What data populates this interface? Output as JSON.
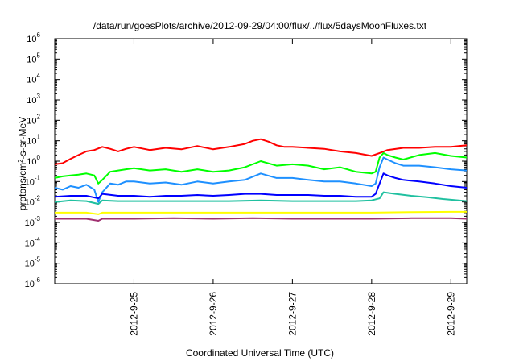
{
  "chart_data": {
    "type": "line",
    "title": "/data/run/goesPlots/archive/2012-09-29/04:00/flux/../flux/5daysMoonFluxes.txt",
    "xlabel": "Coordinated Universal Time (UTC)",
    "ylabel": {
      "prefix": "protons/cm",
      "sup": "2",
      "suffix": "-s-sr-MeV"
    },
    "yscale": "log",
    "ylim_exponents": [
      -6,
      6
    ],
    "ytick_labels": [
      {
        "base": "10",
        "exp": "6"
      },
      {
        "base": "10",
        "exp": "5"
      },
      {
        "base": "10",
        "exp": "4"
      },
      {
        "base": "10",
        "exp": "3"
      },
      {
        "base": "10",
        "exp": "2"
      },
      {
        "base": "10",
        "exp": "1"
      },
      {
        "base": "10",
        "exp": "0"
      },
      {
        "base": "10",
        "exp": "-1"
      },
      {
        "base": "10",
        "exp": "-2"
      },
      {
        "base": "10",
        "exp": "-3"
      },
      {
        "base": "10",
        "exp": "-4"
      },
      {
        "base": "10",
        "exp": "-5"
      },
      {
        "base": "10",
        "exp": "-6"
      }
    ],
    "xlim_days": [
      24.0,
      29.2
    ],
    "xticks": [
      {
        "label": "2012-9-25",
        "day": 25
      },
      {
        "label": "2012-9-26",
        "day": 26
      },
      {
        "label": "2012-9-27",
        "day": 27
      },
      {
        "label": "2012-9-28",
        "day": 28
      },
      {
        "label": "2012-9-29",
        "day": 29
      }
    ],
    "grid": false,
    "legend": "none",
    "series": [
      {
        "color": "#ff0000",
        "x": [
          24.0,
          24.1,
          24.2,
          24.3,
          24.4,
          24.5,
          24.6,
          24.7,
          24.8,
          24.9,
          25.0,
          25.2,
          25.4,
          25.6,
          25.8,
          26.0,
          26.2,
          26.4,
          26.5,
          26.6,
          26.7,
          26.8,
          26.9,
          27.0,
          27.2,
          27.4,
          27.6,
          27.8,
          28.0,
          28.1,
          28.2,
          28.4,
          28.6,
          28.8,
          29.0,
          29.2
        ],
        "y": [
          0.7,
          0.8,
          1.3,
          2.0,
          3.0,
          3.5,
          5.0,
          4.0,
          3.0,
          4.0,
          5.0,
          3.5,
          4.5,
          3.8,
          5.5,
          3.8,
          5.0,
          7.0,
          10,
          12,
          9,
          6,
          5,
          5,
          4.5,
          4,
          3,
          2.5,
          1.8,
          2.5,
          3.5,
          4.5,
          4.5,
          5,
          5,
          6
        ]
      },
      {
        "color": "#00ff00",
        "x": [
          24.0,
          24.1,
          24.2,
          24.3,
          24.4,
          24.5,
          24.55,
          24.6,
          24.7,
          24.8,
          24.9,
          25.0,
          25.2,
          25.4,
          25.6,
          25.8,
          26.0,
          26.2,
          26.4,
          26.6,
          26.8,
          27.0,
          27.2,
          27.4,
          27.6,
          27.8,
          28.0,
          28.05,
          28.1,
          28.15,
          28.2,
          28.3,
          28.4,
          28.6,
          28.8,
          29.0,
          29.2
        ],
        "y": [
          0.15,
          0.18,
          0.2,
          0.22,
          0.25,
          0.2,
          0.08,
          0.12,
          0.3,
          0.35,
          0.4,
          0.45,
          0.35,
          0.4,
          0.3,
          0.4,
          0.3,
          0.35,
          0.5,
          1.0,
          0.6,
          0.7,
          0.6,
          0.4,
          0.5,
          0.3,
          0.25,
          0.3,
          1.5,
          2.5,
          2.0,
          1.5,
          1.2,
          2.0,
          2.5,
          1.8,
          1.5
        ]
      },
      {
        "color": "#1e90ff",
        "x": [
          24.0,
          24.1,
          24.2,
          24.3,
          24.4,
          24.5,
          24.55,
          24.6,
          24.7,
          24.8,
          24.9,
          25.0,
          25.2,
          25.4,
          25.6,
          25.8,
          26.0,
          26.2,
          26.4,
          26.6,
          26.8,
          27.0,
          27.2,
          27.4,
          27.6,
          27.8,
          28.0,
          28.05,
          28.1,
          28.15,
          28.2,
          28.3,
          28.4,
          28.6,
          28.8,
          29.0,
          29.2
        ],
        "y": [
          0.05,
          0.04,
          0.06,
          0.05,
          0.07,
          0.04,
          0.01,
          0.03,
          0.08,
          0.07,
          0.1,
          0.1,
          0.08,
          0.09,
          0.07,
          0.1,
          0.08,
          0.1,
          0.12,
          0.25,
          0.15,
          0.15,
          0.12,
          0.1,
          0.1,
          0.08,
          0.06,
          0.08,
          0.5,
          1.5,
          1.2,
          0.8,
          0.6,
          0.6,
          0.5,
          0.4,
          0.35
        ]
      },
      {
        "color": "#0000ff",
        "x": [
          24.0,
          24.2,
          24.4,
          24.55,
          24.6,
          24.8,
          25.0,
          25.2,
          25.4,
          25.6,
          25.8,
          26.0,
          26.2,
          26.4,
          26.6,
          26.8,
          27.0,
          27.2,
          27.4,
          27.6,
          27.8,
          28.0,
          28.05,
          28.1,
          28.15,
          28.2,
          28.3,
          28.4,
          28.6,
          28.8,
          29.0,
          29.2
        ],
        "y": [
          0.018,
          0.02,
          0.02,
          0.015,
          0.025,
          0.02,
          0.02,
          0.018,
          0.02,
          0.02,
          0.022,
          0.02,
          0.022,
          0.025,
          0.025,
          0.022,
          0.022,
          0.022,
          0.02,
          0.02,
          0.018,
          0.018,
          0.025,
          0.08,
          0.25,
          0.2,
          0.15,
          0.12,
          0.1,
          0.08,
          0.06,
          0.05
        ]
      },
      {
        "color": "#20c0a0",
        "x": [
          24.0,
          24.2,
          24.4,
          24.55,
          24.6,
          24.8,
          25.0,
          25.4,
          25.8,
          26.2,
          26.6,
          27.0,
          27.4,
          27.8,
          28.0,
          28.1,
          28.15,
          28.3,
          28.5,
          28.7,
          28.9,
          29.2
        ],
        "y": [
          0.01,
          0.012,
          0.011,
          0.008,
          0.012,
          0.011,
          0.011,
          0.011,
          0.011,
          0.011,
          0.012,
          0.011,
          0.011,
          0.011,
          0.012,
          0.015,
          0.03,
          0.025,
          0.02,
          0.017,
          0.014,
          0.011
        ]
      },
      {
        "color": "#ffff00",
        "x": [
          24.0,
          24.4,
          24.55,
          24.6,
          25.0,
          25.5,
          26.0,
          26.5,
          27.0,
          27.5,
          28.0,
          28.5,
          29.0,
          29.2
        ],
        "y": [
          0.003,
          0.003,
          0.0025,
          0.003,
          0.003,
          0.003,
          0.003,
          0.003,
          0.003,
          0.003,
          0.003,
          0.0032,
          0.0033,
          0.0033
        ]
      },
      {
        "color": "#a03070",
        "x": [
          24.0,
          24.4,
          24.55,
          24.6,
          25.0,
          25.5,
          26.0,
          26.5,
          27.0,
          27.5,
          28.0,
          28.5,
          29.0,
          29.2
        ],
        "y": [
          0.0015,
          0.0015,
          0.0012,
          0.0015,
          0.0015,
          0.0016,
          0.0015,
          0.0016,
          0.0015,
          0.0015,
          0.0015,
          0.0016,
          0.0016,
          0.0015
        ]
      }
    ]
  }
}
